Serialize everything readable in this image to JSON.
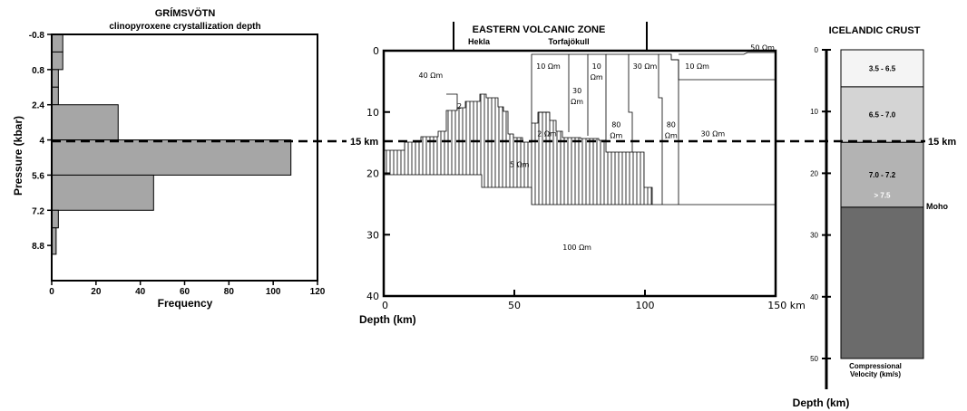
{
  "colors": {
    "hist_fill": "#a6a6a6",
    "crust_layers": [
      "#f4f4f4",
      "#d4d4d4",
      "#b3b3b3",
      "#6b6b6b"
    ],
    "crust_text": [
      "#000000",
      "#000000",
      "#000000",
      "#ffffff"
    ],
    "ink": "#000000"
  },
  "chart_data": [
    {
      "type": "bar",
      "orientation": "horizontal",
      "title": "GRÍMSVÖTN",
      "subtitle": "clinopyroxene crystallization depth",
      "xlabel": "Frequency",
      "ylabel": "Pressure (kbar)",
      "xlim": [
        0,
        120
      ],
      "ylim": [
        -0.8,
        10.4
      ],
      "y_inverted": true,
      "xticks": [
        0,
        20,
        40,
        60,
        80,
        100,
        120
      ],
      "yticks": [
        "-0.8",
        "0.8",
        "2.4",
        "4",
        "5.6",
        "7.2",
        "8.8"
      ],
      "bins": [
        {
          "from": -0.8,
          "to": 0.0,
          "value": 5
        },
        {
          "from": 0.0,
          "to": 0.8,
          "value": 5
        },
        {
          "from": 0.8,
          "to": 1.6,
          "value": 3
        },
        {
          "from": 1.6,
          "to": 2.4,
          "value": 3
        },
        {
          "from": 2.4,
          "to": 4.0,
          "value": 30
        },
        {
          "from": 4.0,
          "to": 5.6,
          "value": 108
        },
        {
          "from": 5.6,
          "to": 7.2,
          "value": 46
        },
        {
          "from": 7.2,
          "to": 8.0,
          "value": 3
        },
        {
          "from": 8.0,
          "to": 9.2,
          "value": 2
        }
      ],
      "marker": {
        "value": 4,
        "label": "15 km"
      }
    },
    {
      "type": "section",
      "title": "EASTERN VOLCANIC ZONE",
      "top_labels": [
        "Hekla",
        "Torfajökull"
      ],
      "xlabel": "Depth (km)",
      "xticks": [
        "0",
        "50",
        "100",
        "150 km"
      ],
      "yticks": [
        "0",
        "10",
        "20",
        "30",
        "40"
      ],
      "xlim": [
        0,
        150
      ],
      "ylim": [
        0,
        40
      ],
      "y_inverted": true,
      "resistivity_labels": [
        {
          "text": "50 Ωm",
          "x": 145,
          "y": -0.5
        },
        {
          "text": "40 Ωm",
          "x": 18,
          "y": 4
        },
        {
          "text": "10 Ωm",
          "x": 63,
          "y": 2.5
        },
        {
          "text": "10",
          "x": 81.5,
          "y": 2.5
        },
        {
          "text": "Ωm",
          "x": 81.5,
          "y": 4.3
        },
        {
          "text": "10 Ωm",
          "x": 120,
          "y": 2.5
        },
        {
          "text": "30",
          "x": 74,
          "y": 6.5
        },
        {
          "text": "Ωm",
          "x": 74,
          "y": 8.3
        },
        {
          "text": "30 Ωm",
          "x": 100,
          "y": 2.5
        },
        {
          "text": "2",
          "x": 29,
          "y": 9
        },
        {
          "text": "80",
          "x": 89,
          "y": 12
        },
        {
          "text": "Ωm",
          "x": 89,
          "y": 13.8
        },
        {
          "text": "80",
          "x": 110,
          "y": 12
        },
        {
          "text": "Ωm",
          "x": 110,
          "y": 13.8
        },
        {
          "text": "30 Ωm",
          "x": 126,
          "y": 13.5
        },
        {
          "text": "2 Ωm",
          "x": 62.5,
          "y": 13.5
        },
        {
          "text": "5 Ωm",
          "x": 52,
          "y": 18.5
        },
        {
          "text": "100 Ωm",
          "x": 74,
          "y": 32
        }
      ],
      "marker": {
        "value": 15,
        "label": "15 km"
      }
    },
    {
      "type": "table",
      "title": "ICELANDIC CRUST",
      "ylabel": "Depth (km)",
      "ylim": [
        0,
        50
      ],
      "yticks": [
        "0",
        "10",
        "20",
        "30",
        "40",
        "50"
      ],
      "layers": [
        {
          "from": 0,
          "to": 6,
          "velocity": "3.5 - 6.5"
        },
        {
          "from": 6,
          "to": 15,
          "velocity": "6.5 - 7.0"
        },
        {
          "from": 15,
          "to": 25.5,
          "velocity": "7.0 - 7.2"
        },
        {
          "from": 25.5,
          "to": 50,
          "velocity": "> 7.5"
        }
      ],
      "moho_label": "Moho",
      "caption_line1": "Compressional",
      "caption_line2": "Velocity (km/s)",
      "marker": {
        "value": 15,
        "label": "15 km"
      }
    }
  ]
}
